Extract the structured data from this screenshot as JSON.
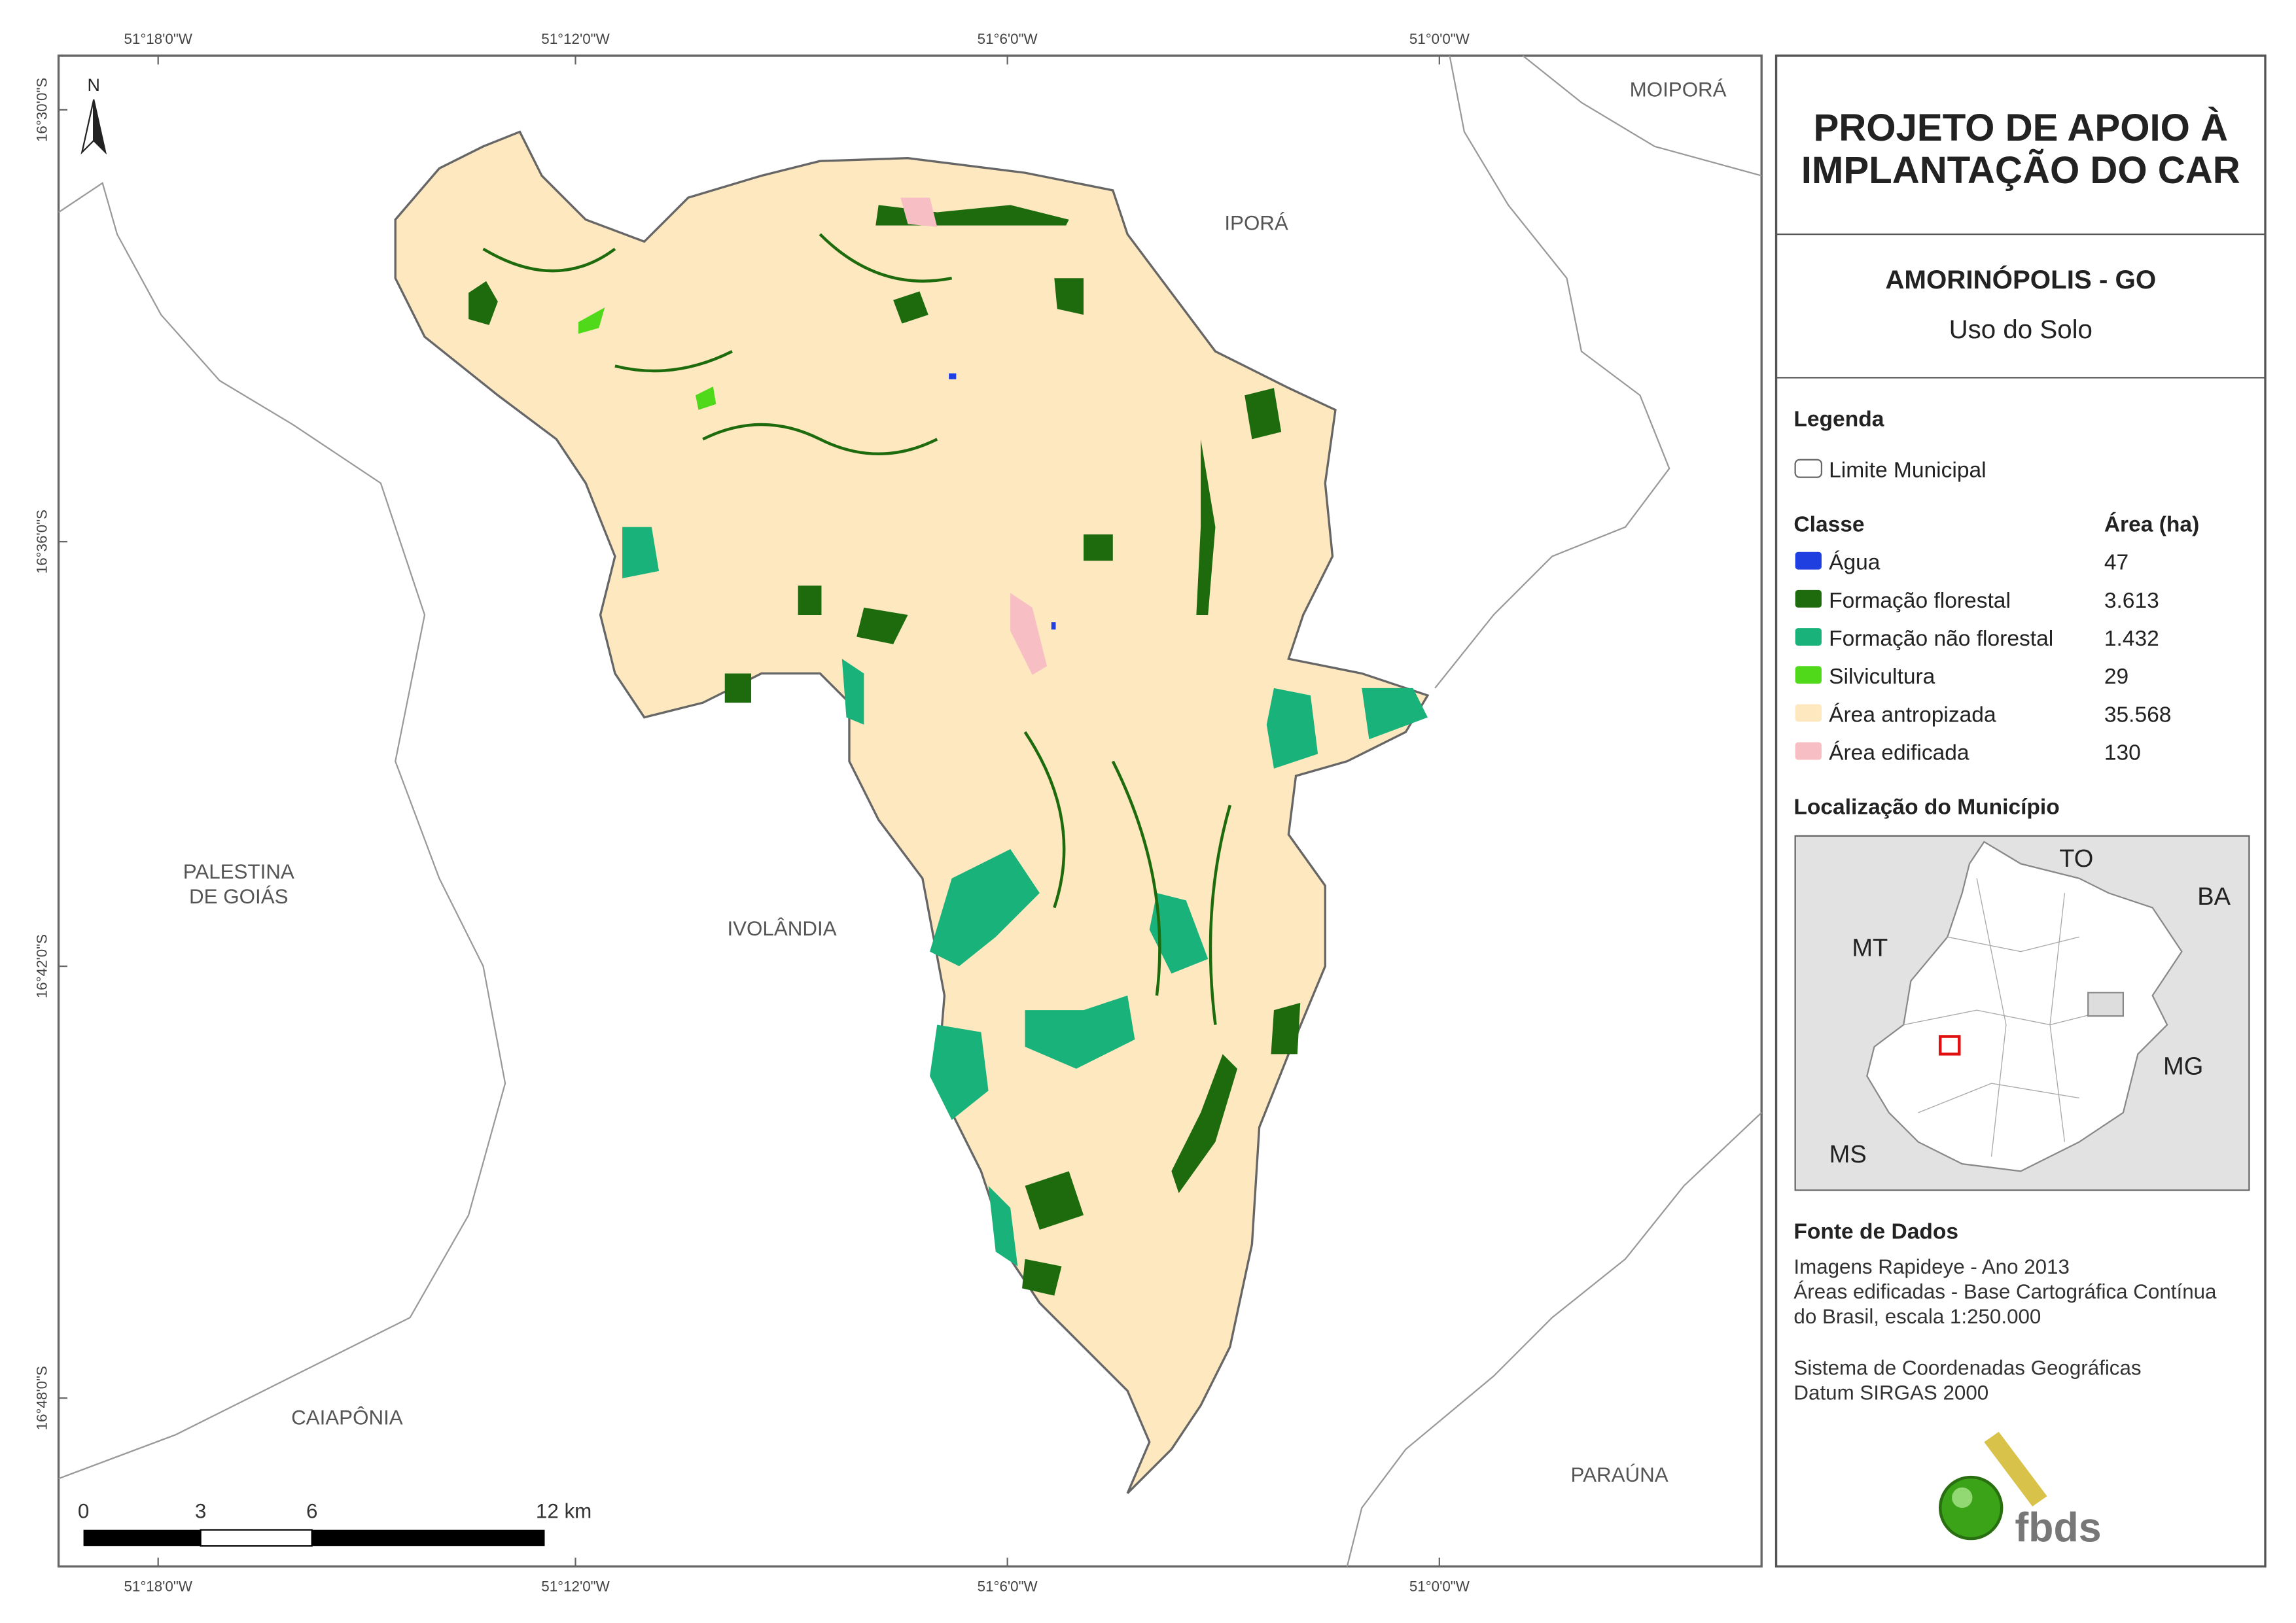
{
  "map": {
    "coordinates_x": [
      "51°18'0\"W",
      "51°12'0\"W",
      "51°6'0\"W",
      "51°0'0\"W"
    ],
    "coordinates_y": [
      "16°30'0\"S",
      "16°36'0\"S",
      "16°42'0\"S",
      "16°48'0\"S"
    ],
    "north": "N",
    "place_labels": {
      "moipora": "MOIPORÁ",
      "ipora": "IPORÁ",
      "palestina": [
        "PALESTINA",
        "DE GOIÁS"
      ],
      "ivolandia": "IVOLÂNDIA",
      "caiaponia": "CAIAPÔNIA",
      "parauna": "PARAÚNA"
    },
    "scale_labels": [
      "0",
      "3",
      "6",
      "12 km"
    ]
  },
  "panel": {
    "title": [
      "PROJETO DE APOIO À",
      "IMPLANTAÇÃO DO CAR"
    ],
    "municipality": "AMORINÓPOLIS - GO",
    "subtitle": "Uso do Solo",
    "legend_heading": "Legenda",
    "boundary_label": "Limite Municipal",
    "class_heading": "Classe",
    "area_heading": "Área (ha)",
    "classes": [
      {
        "name": "Água",
        "color": "#1f3fe0",
        "area": "47"
      },
      {
        "name": "Formação florestal",
        "color": "#1e6b0e",
        "area": "3.613"
      },
      {
        "name": "Formação não florestal",
        "color": "#19b27a",
        "area": "1.432"
      },
      {
        "name": "Silvicultura",
        "color": "#4fd91a",
        "area": "29"
      },
      {
        "name": "Área antropizada",
        "color": "#fde8c0",
        "area": "35.568"
      },
      {
        "name": "Área edificada",
        "color": "#f7bfc4",
        "area": "130"
      }
    ],
    "location_heading": "Localização do Município",
    "inset_labels": {
      "to": "TO",
      "ba": "BA",
      "mt": "MT",
      "mg": "MG",
      "ms": "MS"
    },
    "sources_heading": "Fonte de Dados",
    "sources": [
      "Imagens Rapideye - Ano 2013",
      "Áreas edificadas - Base Cartográfica Contínua",
      "do Brasil, escala 1:250.000"
    ],
    "crs": [
      "Sistema de Coordenadas Geográficas",
      "Datum SIRGAS 2000"
    ],
    "logo": "fbds"
  }
}
